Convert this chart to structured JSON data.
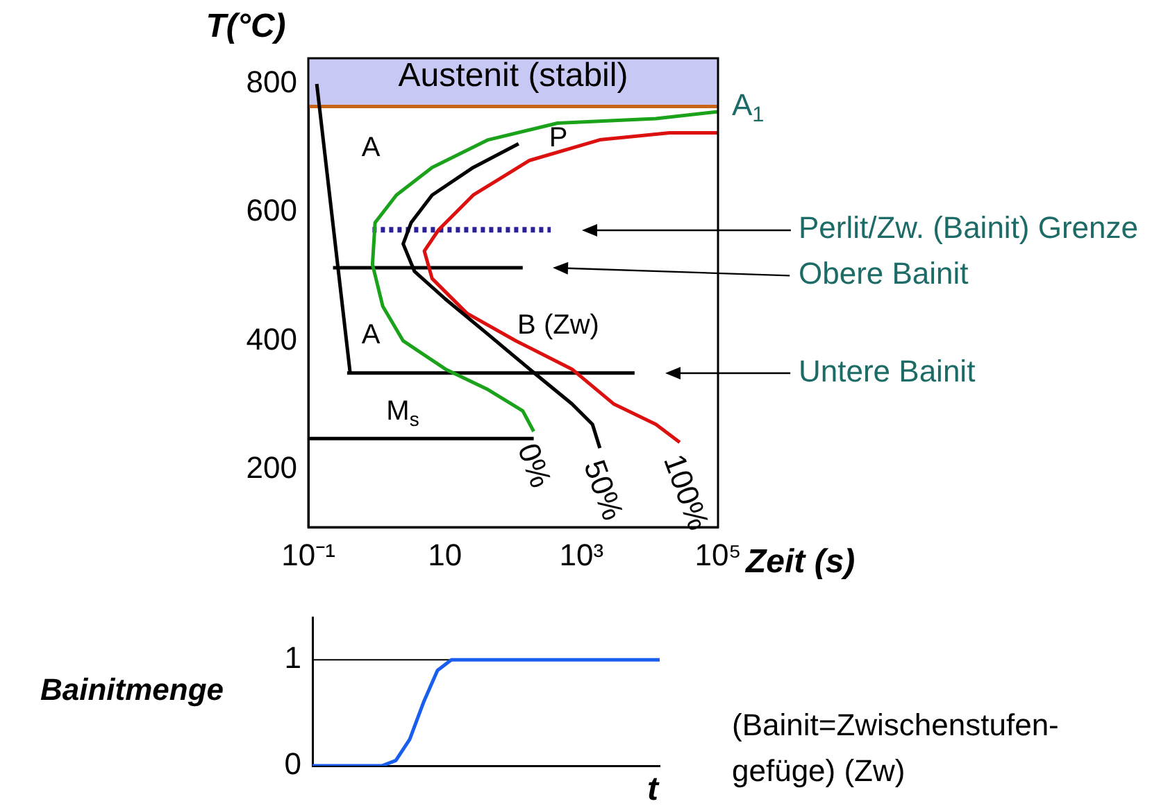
{
  "chart_data": [
    {
      "type": "line",
      "ylabel": "T(°C)",
      "xlabel": "Zeit (s)",
      "log": "x",
      "xlim": [
        0.1,
        100000
      ],
      "xticks": [
        {
          "value": 0.1,
          "label": "10⁻¹"
        },
        10,
        {
          "value": 1000,
          "label": "10³"
        },
        {
          "value": 100000,
          "label": "10⁵"
        }
      ],
      "ylim": [
        110,
        840
      ],
      "yticks": [
        200,
        400,
        600,
        800
      ],
      "grid": false,
      "legend": "right",
      "marker": "none",
      "series": [
        {
          "name": "0%",
          "color": "#1aa31a",
          "x": [
            100000,
            12300,
            447,
            43,
            6.5,
            1.95,
            0.95,
            0.87,
            1.23,
            2.45,
            10.2,
            43,
            138,
            200
          ],
          "values": [
            757,
            746,
            739,
            713,
            670,
            627,
            584,
            519,
            454,
            400,
            356,
            324,
            291,
            259
          ]
        },
        {
          "name": "50%",
          "color": "#000000",
          "x": [
            120,
            26,
            6.5,
            3.2,
            2.45,
            3.6,
            10.2,
            43,
            174,
            725,
            1450,
            1860
          ],
          "values": [
            707,
            670,
            627,
            584,
            551,
            508,
            465,
            410,
            356,
            302,
            270,
            233
          ]
        },
        {
          "name": "100%",
          "color": "#dd1010",
          "x": [
            100000,
            19500,
            1860,
            174,
            26,
            8.1,
            5,
            6.5,
            21,
            110,
            725,
            2950,
            12300,
            27500
          ],
          "values": [
            724,
            724,
            713,
            681,
            627,
            573,
            540,
            497,
            443,
            400,
            356,
            302,
            270,
            242
          ]
        },
        {
          "name": "Perlit/Zw. (Bainit) Grenze",
          "color": "#2b1f9e",
          "line_style": "dotted",
          "x": [
            0.87,
            355
          ],
          "values": [
            573,
            573
          ]
        },
        {
          "name": "Obere Bainit",
          "color": "#000000",
          "x": [
            0.23,
            138
          ],
          "values": [
            514,
            514
          ]
        },
        {
          "name": "Untere Bainit",
          "color": "#000000",
          "x": [
            0.37,
            6000
          ],
          "values": [
            350,
            350
          ]
        },
        {
          "color": "#000000",
          "x": [
            0.1,
            200
          ],
          "values": [
            248,
            248
          ]
        },
        {
          "color": "#000000",
          "x": [
            0.133,
            0.41
          ],
          "values": [
            800,
            350
          ]
        }
      ],
      "bands": [
        {
          "axis": "y",
          "from": 765,
          "to": 840,
          "label": "Austenit (stabil)",
          "color": "#c8c8f5"
        }
      ],
      "ref_lines": [
        {
          "axis": "y",
          "value": 765,
          "label": "A$_{1}$",
          "color": "#c8651b"
        }
      ],
      "annotations": [
        "A",
        "P",
        "A",
        "B (Zw)",
        "M$_{s}$"
      ]
    },
    {
      "type": "line",
      "ylabel": "Bainitmenge",
      "xlabel": "t",
      "categories": [
        null,
        null,
        null,
        null,
        null,
        null,
        null,
        null,
        null,
        null,
        null,
        null,
        null,
        null,
        null,
        null,
        null,
        null,
        null,
        null,
        null,
        null,
        null,
        null,
        null,
        null
      ],
      "ylim": [
        0,
        1.4
      ],
      "yticks": [
        0,
        1
      ],
      "grid": false,
      "marker": "none",
      "series": [
        {
          "color": "#1a5ef0",
          "values": [
            0,
            0,
            0,
            0,
            0,
            0,
            0.05,
            0.25,
            0.6,
            0.9,
            1,
            1,
            1,
            1,
            1,
            1,
            1,
            1,
            1,
            1,
            1,
            1,
            1,
            1,
            1,
            1
          ]
        }
      ],
      "ref_lines": [
        {
          "axis": "y",
          "value": 1,
          "color": "#000000"
        }
      ],
      "annotations": [
        "(Bainit=Zwischenstufen-gefüge) (Zw)"
      ]
    }
  ]
}
